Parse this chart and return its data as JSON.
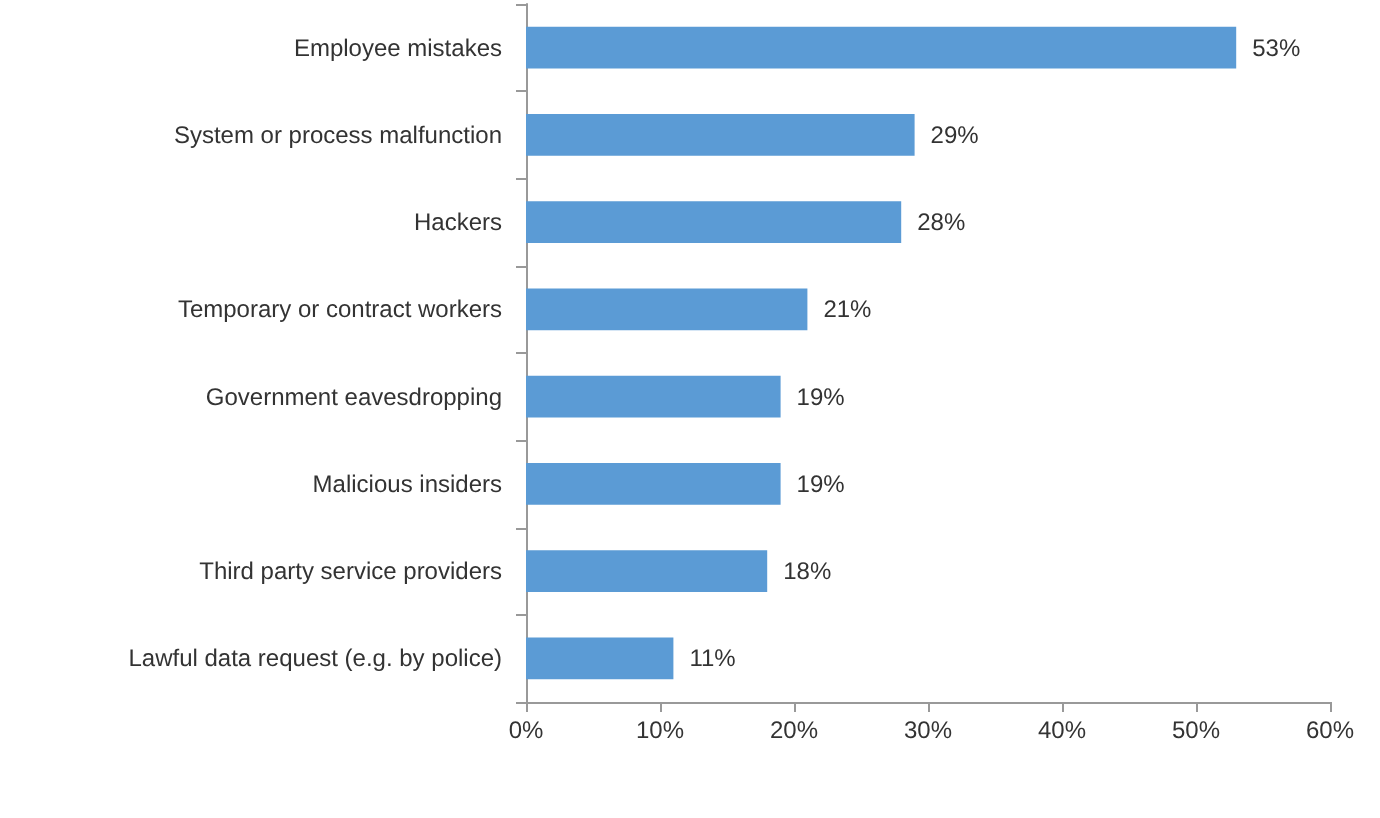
{
  "chart_data": {
    "type": "bar",
    "orientation": "horizontal",
    "categories": [
      "Employee mistakes",
      "System or process malfunction",
      "Hackers",
      "Temporary or contract workers",
      "Government eavesdropping",
      "Malicious insiders",
      "Third party service providers",
      "Lawful data request (e.g. by police)"
    ],
    "values": [
      53,
      29,
      28,
      21,
      19,
      19,
      18,
      11
    ],
    "value_labels": [
      "53%",
      "29%",
      "28%",
      "21%",
      "19%",
      "19%",
      "18%",
      "11%"
    ],
    "color": "#5b9bd5",
    "xlim": [
      0,
      60
    ],
    "xticks": [
      {
        "value": 0,
        "label": "0%"
      },
      {
        "value": 10,
        "label": "10%"
      },
      {
        "value": 20,
        "label": "20%"
      },
      {
        "value": 30,
        "label": "30%"
      },
      {
        "value": 40,
        "label": "40%"
      },
      {
        "value": 50,
        "label": "50%"
      },
      {
        "value": 60,
        "label": "60%"
      }
    ],
    "grid": false
  }
}
